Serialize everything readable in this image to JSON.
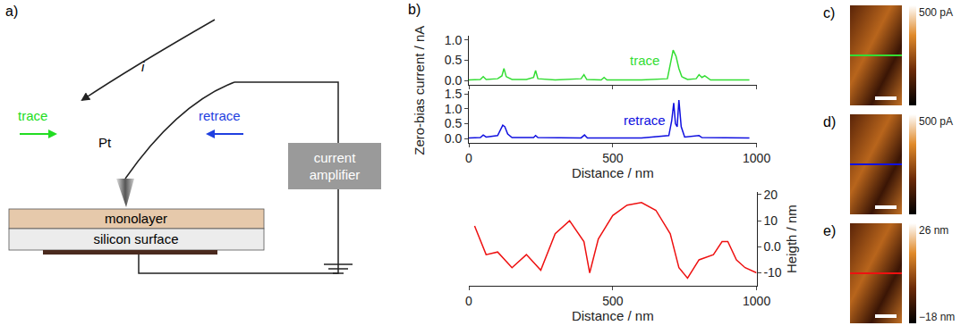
{
  "diagram": {
    "label": "a)",
    "current": "i",
    "tip": "Pt",
    "trace": "trace",
    "retrace": "retrace",
    "layers": [
      "monolayer",
      "silicon surface"
    ],
    "amplifier": "current amplifier",
    "trace_color": "#22dd22",
    "retrace_color": "#1f3fe0"
  },
  "chart_data": [
    {
      "type": "line",
      "label": "b)",
      "annotation": "trace",
      "color": "#33dd33",
      "y_label": "Zero-bias current / nA",
      "tick_labels": "y",
      "x": [
        0,
        40,
        50,
        60,
        100,
        115,
        122,
        130,
        150,
        200,
        225,
        232,
        240,
        300,
        390,
        400,
        410,
        460,
        470,
        480,
        600,
        690,
        700,
        710,
        720,
        730,
        740,
        760,
        790,
        800,
        810,
        820,
        840,
        975
      ],
      "values": [
        0.02,
        0.03,
        0.1,
        0.03,
        0.05,
        0.12,
        0.3,
        0.1,
        0.03,
        0.03,
        0.08,
        0.25,
        0.05,
        0.02,
        0.05,
        0.15,
        0.03,
        0.02,
        0.08,
        0.02,
        0.02,
        0.05,
        0.4,
        0.75,
        0.6,
        0.3,
        0.1,
        0.03,
        0.05,
        0.15,
        0.08,
        0.12,
        0.02,
        0.02
      ],
      "xlim": [
        0,
        1000
      ],
      "xticks": [
        0,
        500,
        1000
      ],
      "ylim": [
        -0.1,
        1.1
      ],
      "yticks": [
        {
          "value": 0,
          "label": "0.0"
        },
        {
          "value": 0.5,
          "label": "0.5"
        },
        {
          "value": 1,
          "label": "1.0"
        }
      ]
    },
    {
      "type": "line",
      "annotation": "retrace",
      "color": "#1010e0",
      "x_label": "Distance / nm",
      "x": [
        0,
        40,
        50,
        60,
        100,
        110,
        118,
        125,
        135,
        150,
        225,
        232,
        240,
        390,
        402,
        412,
        600,
        695,
        705,
        712,
        718,
        724,
        730,
        738,
        750,
        800,
        810,
        975
      ],
      "values": [
        0.02,
        0.03,
        0.12,
        0.05,
        0.1,
        0.3,
        0.45,
        0.4,
        0.15,
        0.03,
        0.03,
        0.1,
        0.03,
        0.02,
        0.12,
        0.02,
        0.02,
        0.1,
        0.6,
        1.2,
        0.5,
        0.4,
        1.3,
        0.4,
        0.05,
        0.1,
        0.03,
        0.02
      ],
      "xlim": [
        0,
        1000
      ],
      "xticks": [
        0,
        500,
        1000
      ],
      "ylim": [
        -0.15,
        1.6
      ],
      "yticks": [
        {
          "value": 0,
          "label": "0.0"
        },
        {
          "value": 0.5,
          "label": "0.5"
        },
        {
          "value": 1,
          "label": "1.0"
        },
        {
          "value": 1.5,
          "label": "1.5"
        }
      ]
    },
    {
      "type": "line",
      "color": "#ee1111",
      "x_label": "Distance / nm",
      "y_label": "Heigth / nm",
      "x": [
        20,
        60,
        100,
        150,
        200,
        250,
        300,
        350,
        400,
        420,
        450,
        500,
        550,
        600,
        650,
        700,
        730,
        760,
        800,
        850,
        880,
        900,
        930,
        960,
        1000
      ],
      "values": [
        8,
        -3,
        -2,
        -8,
        -3,
        -9,
        5,
        10,
        2,
        -10,
        3,
        12,
        16,
        17,
        14,
        5,
        -8,
        -12,
        -5,
        -3,
        2,
        2,
        -5,
        -8,
        -10
      ],
      "xlim": [
        0,
        1000
      ],
      "xticks": [
        0,
        500,
        1000
      ],
      "ylim": [
        -15,
        21
      ],
      "yticks": [
        -10,
        {
          "value": 0,
          "label": "0.0"
        },
        10,
        20
      ]
    }
  ],
  "images": [
    {
      "label": "c)",
      "line_color": "#33dd33",
      "colorbar_ticks": [
        {
          "value": 500,
          "label": "500 pA"
        }
      ]
    },
    {
      "label": "d)",
      "line_color": "#1010e0",
      "colorbar_ticks": [
        {
          "value": 500,
          "label": "500 pA"
        }
      ]
    },
    {
      "label": "e)",
      "line_color": "#ee1111",
      "colorbar_ticks": [
        {
          "value": 26,
          "label": "26 nm"
        },
        {
          "value": -18,
          "label": "−18 nm"
        }
      ]
    }
  ]
}
